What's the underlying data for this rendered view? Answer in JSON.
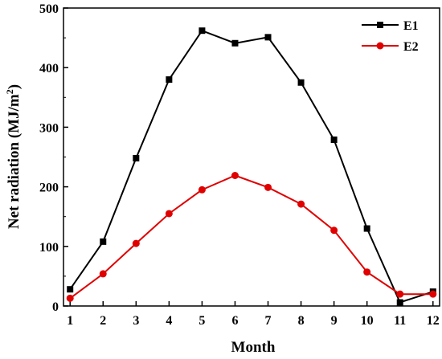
{
  "chart_data": {
    "type": "line",
    "xlabel": "Month",
    "ylabel": "Net radiation (MJ/m",
    "ylabel_sup": "2",
    "ylabel_end": ")",
    "xlim": [
      0.8,
      12.2
    ],
    "ylim": [
      0,
      500
    ],
    "x_ticks": [
      "1",
      "2",
      "3",
      "4",
      "5",
      "6",
      "7",
      "8",
      "9",
      "10",
      "11",
      "12"
    ],
    "y_ticks": [
      "0",
      "100",
      "200",
      "300",
      "400",
      "500"
    ],
    "x": [
      1,
      2,
      3,
      4,
      5,
      6,
      7,
      8,
      9,
      10,
      11,
      12
    ],
    "grid": false,
    "legend_position": "top-right",
    "series": [
      {
        "name": "E1",
        "color": "#000000",
        "marker": "square",
        "values": [
          28,
          108,
          248,
          380,
          462,
          441,
          451,
          375,
          279,
          130,
          6,
          24
        ]
      },
      {
        "name": "E2",
        "color": "#e00000",
        "marker": "circle",
        "values": [
          13,
          54,
          105,
          155,
          195,
          219,
          199,
          171,
          127,
          57,
          20,
          20
        ]
      }
    ]
  }
}
